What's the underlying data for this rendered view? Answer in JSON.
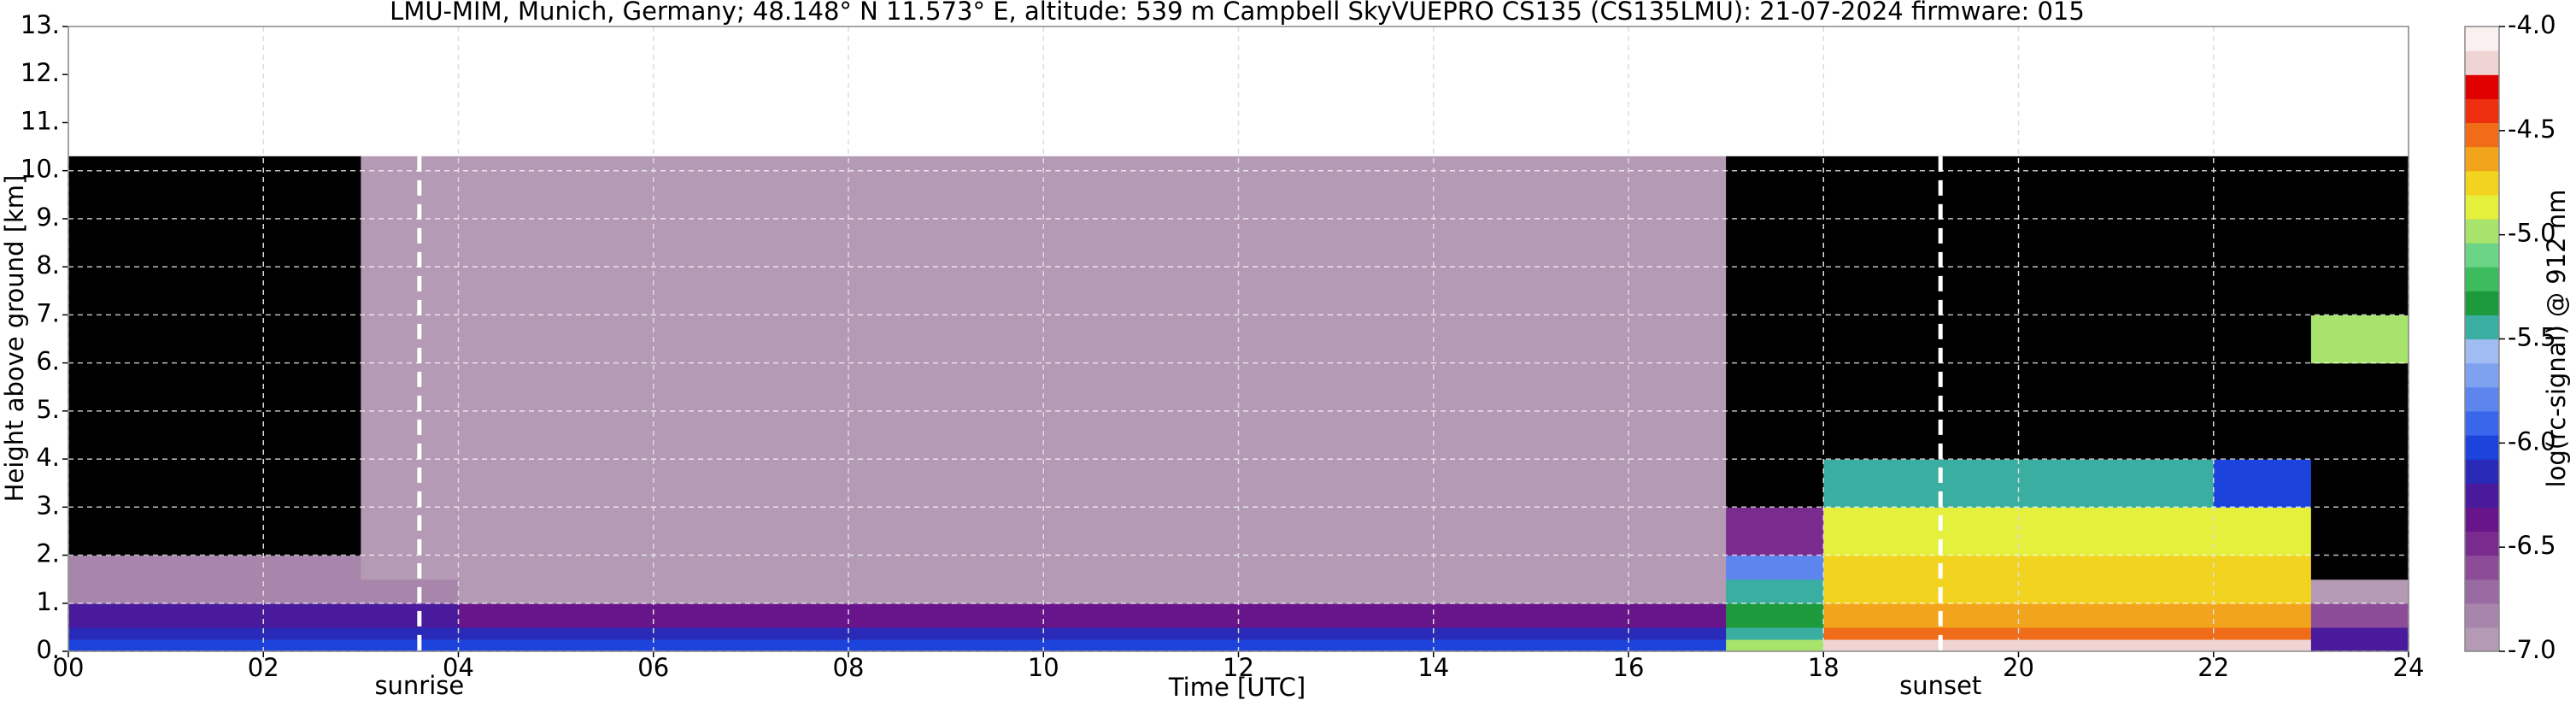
{
  "chart_data": {
    "type": "heatmap",
    "title": "LMU-MIM, Munich, Germany; 48.148° N 11.573° E, altitude: 539 m    Campbell SkyVUEPRO CS135 (CS135LMU): 21-07-2024    firmware: 015",
    "x_label": "Time [UTC]",
    "y_label": "Height above ground [km]",
    "colorbar_label": "log(rc-signal) @ 912 nm",
    "xlim": [
      0,
      24
    ],
    "ylim": [
      0,
      13
    ],
    "xticks": [
      {
        "value": 0,
        "label": "00"
      },
      {
        "value": 2,
        "label": "02"
      },
      {
        "value": 4,
        "label": "04"
      },
      {
        "value": 6,
        "label": "06"
      },
      {
        "value": 8,
        "label": "08"
      },
      {
        "value": 10,
        "label": "10"
      },
      {
        "value": 12,
        "label": "12"
      },
      {
        "value": 14,
        "label": "14"
      },
      {
        "value": 16,
        "label": "16"
      },
      {
        "value": 18,
        "label": "18"
      },
      {
        "value": 20,
        "label": "20"
      },
      {
        "value": 22,
        "label": "22"
      },
      {
        "value": 24,
        "label": "24"
      }
    ],
    "yticks": [
      {
        "value": 0,
        "label": "0."
      },
      {
        "value": 1,
        "label": "1."
      },
      {
        "value": 2,
        "label": "2."
      },
      {
        "value": 3,
        "label": "3."
      },
      {
        "value": 4,
        "label": "4."
      },
      {
        "value": 5,
        "label": "5."
      },
      {
        "value": 6,
        "label": "6."
      },
      {
        "value": 7,
        "label": "7."
      },
      {
        "value": 8,
        "label": "8."
      },
      {
        "value": 9,
        "label": "9."
      },
      {
        "value": 10,
        "label": "10."
      },
      {
        "value": 11,
        "label": "11."
      },
      {
        "value": 12,
        "label": "12."
      },
      {
        "value": 13,
        "label": "13."
      }
    ],
    "clim": [
      -7,
      -4
    ],
    "cticks": [
      {
        "value": -4,
        "label": "-4.0"
      },
      {
        "value": -4.5,
        "label": "-4.5"
      },
      {
        "value": -5,
        "label": "-5.0"
      },
      {
        "value": -5.5,
        "label": "-5.5"
      },
      {
        "value": -6,
        "label": "-6.0"
      },
      {
        "value": -6.5,
        "label": "-6.5"
      },
      {
        "value": -7,
        "label": "-7.0"
      }
    ],
    "colormap": [
      "#b49ab4",
      "#a886ac",
      "#9a6aa2",
      "#8c4c98",
      "#7a2c8e",
      "#68148a",
      "#4a1a9c",
      "#2a2ab8",
      "#1c44dc",
      "#3a66ec",
      "#5c86ee",
      "#7ea2f0",
      "#a0bcf2",
      "#3aaea0",
      "#1c9a3c",
      "#3cbc5c",
      "#6cd486",
      "#a8e46c",
      "#e4f03c",
      "#f2d420",
      "#f2a41c",
      "#f06c18",
      "#ee3010",
      "#e00000",
      "#f0d4d4",
      "#faf0f0"
    ],
    "under_color": "#000000",
    "grid": true,
    "x_edges": [
      0,
      1,
      2,
      3,
      4,
      5,
      6,
      7,
      8,
      9,
      10,
      11,
      12,
      13,
      14,
      15,
      16,
      17,
      18,
      19,
      20,
      21,
      22,
      23,
      24
    ],
    "y_edges": [
      0,
      0.25,
      0.5,
      1,
      1.5,
      2,
      3,
      4,
      5,
      6,
      7,
      8,
      9,
      10.3
    ],
    "z": [
      [
        -6.0,
        -6.0,
        -6.0,
        -6.0,
        -6.0,
        -6.0,
        -6.0,
        -6.0,
        -6.0,
        -6.0,
        -6.0,
        -6.0,
        -6.0,
        -6.0,
        -6.0,
        -6.0,
        -6.0,
        -5.0,
        -4.2,
        -4.2,
        -4.2,
        -4.2,
        -4.2,
        -6.2
      ],
      [
        -6.1,
        -6.1,
        -6.1,
        -6.1,
        -6.1,
        -6.1,
        -6.1,
        -6.1,
        -6.1,
        -6.1,
        -6.1,
        -6.1,
        -6.1,
        -6.1,
        -6.1,
        -6.1,
        -6.1,
        -5.5,
        -4.5,
        -4.5,
        -4.5,
        -4.5,
        -4.5,
        -6.3
      ],
      [
        -6.2,
        -6.2,
        -6.2,
        -6.2,
        -6.4,
        -6.4,
        -6.4,
        -6.4,
        -6.4,
        -6.4,
        -6.4,
        -6.4,
        -6.4,
        -6.4,
        -6.4,
        -6.4,
        -6.4,
        -5.3,
        -4.6,
        -4.6,
        -4.6,
        -4.6,
        -4.6,
        -6.6
      ],
      [
        -6.8,
        -6.8,
        -6.8,
        -6.8,
        -6.95,
        -6.95,
        -6.95,
        -6.95,
        -6.95,
        -6.95,
        -6.95,
        -6.95,
        -6.95,
        -6.95,
        -6.95,
        -6.95,
        -6.95,
        -5.5,
        -4.8,
        -4.8,
        -4.8,
        -4.8,
        -4.8,
        -6.9
      ],
      [
        -6.8,
        -6.8,
        -6.8,
        -6.95,
        -6.95,
        -6.95,
        -6.95,
        -6.95,
        -6.95,
        -6.95,
        -6.95,
        -6.95,
        -6.95,
        -6.95,
        -6.95,
        -6.95,
        -6.95,
        -5.8,
        -4.8,
        -4.8,
        -4.8,
        -4.8,
        -4.8,
        -7.5
      ],
      [
        -7.3,
        -7.3,
        -7.3,
        -6.95,
        -6.95,
        -6.95,
        -6.95,
        -6.95,
        -6.95,
        -6.95,
        -6.95,
        -6.95,
        -6.95,
        -6.95,
        -6.95,
        -6.95,
        -6.95,
        -6.5,
        -4.9,
        -4.9,
        -4.9,
        -4.9,
        -4.9,
        -7.5
      ],
      [
        -7.5,
        -7.5,
        -7.5,
        -6.95,
        -6.95,
        -6.95,
        -6.95,
        -6.95,
        -6.95,
        -6.95,
        -6.95,
        -6.95,
        -6.95,
        -6.95,
        -6.95,
        -6.95,
        -6.95,
        -7.5,
        -5.5,
        -5.5,
        -5.5,
        -5.5,
        -6.0,
        -7.5
      ],
      [
        -7.5,
        -7.5,
        -7.5,
        -6.95,
        -6.95,
        -6.95,
        -6.95,
        -6.95,
        -6.95,
        -6.95,
        -6.95,
        -6.95,
        -6.95,
        -6.95,
        -6.95,
        -6.95,
        -6.95,
        -7.5,
        -7.5,
        -7.5,
        -7.5,
        -7.5,
        -7.5,
        -7.5
      ],
      [
        -7.5,
        -7.5,
        -7.5,
        -6.95,
        -6.95,
        -6.95,
        -6.95,
        -6.95,
        -6.95,
        -6.95,
        -6.95,
        -6.95,
        -6.95,
        -6.95,
        -6.95,
        -6.95,
        -6.95,
        -7.5,
        -7.5,
        -7.5,
        -7.5,
        -7.5,
        -7.5,
        -7.5
      ],
      [
        -7.5,
        -7.5,
        -7.5,
        -6.95,
        -6.95,
        -6.95,
        -6.95,
        -6.95,
        -6.95,
        -6.95,
        -6.95,
        -6.95,
        -6.95,
        -6.95,
        -6.95,
        -6.95,
        -6.95,
        -7.5,
        -7.5,
        -7.5,
        -7.5,
        -7.5,
        -7.5,
        -5.0
      ],
      [
        -7.5,
        -7.5,
        -7.5,
        -6.95,
        -6.95,
        -6.95,
        -6.95,
        -6.95,
        -6.95,
        -6.95,
        -6.95,
        -6.95,
        -6.95,
        -6.95,
        -6.95,
        -6.95,
        -6.95,
        -7.5,
        -7.5,
        -7.5,
        -7.5,
        -7.5,
        -7.5,
        -7.5
      ],
      [
        -7.5,
        -7.5,
        -7.5,
        -6.95,
        -6.95,
        -6.95,
        -6.95,
        -6.95,
        -6.95,
        -6.95,
        -6.95,
        -6.95,
        -6.95,
        -6.95,
        -6.95,
        -6.95,
        -6.95,
        -7.5,
        -7.5,
        -7.5,
        -7.5,
        -7.5,
        -7.5,
        -7.5
      ],
      [
        -7.5,
        -7.5,
        -7.5,
        -6.95,
        -6.95,
        -6.95,
        -6.95,
        -6.95,
        -6.95,
        -6.95,
        -6.95,
        -6.95,
        -6.95,
        -6.95,
        -6.95,
        -6.95,
        -6.95,
        -7.5,
        -7.5,
        -7.5,
        -7.5,
        -7.5,
        -7.5,
        -7.5
      ]
    ],
    "annotations": [
      {
        "text": "sunrise",
        "x": 3.6
      },
      {
        "text": "sunset",
        "x": 19.2
      }
    ]
  }
}
